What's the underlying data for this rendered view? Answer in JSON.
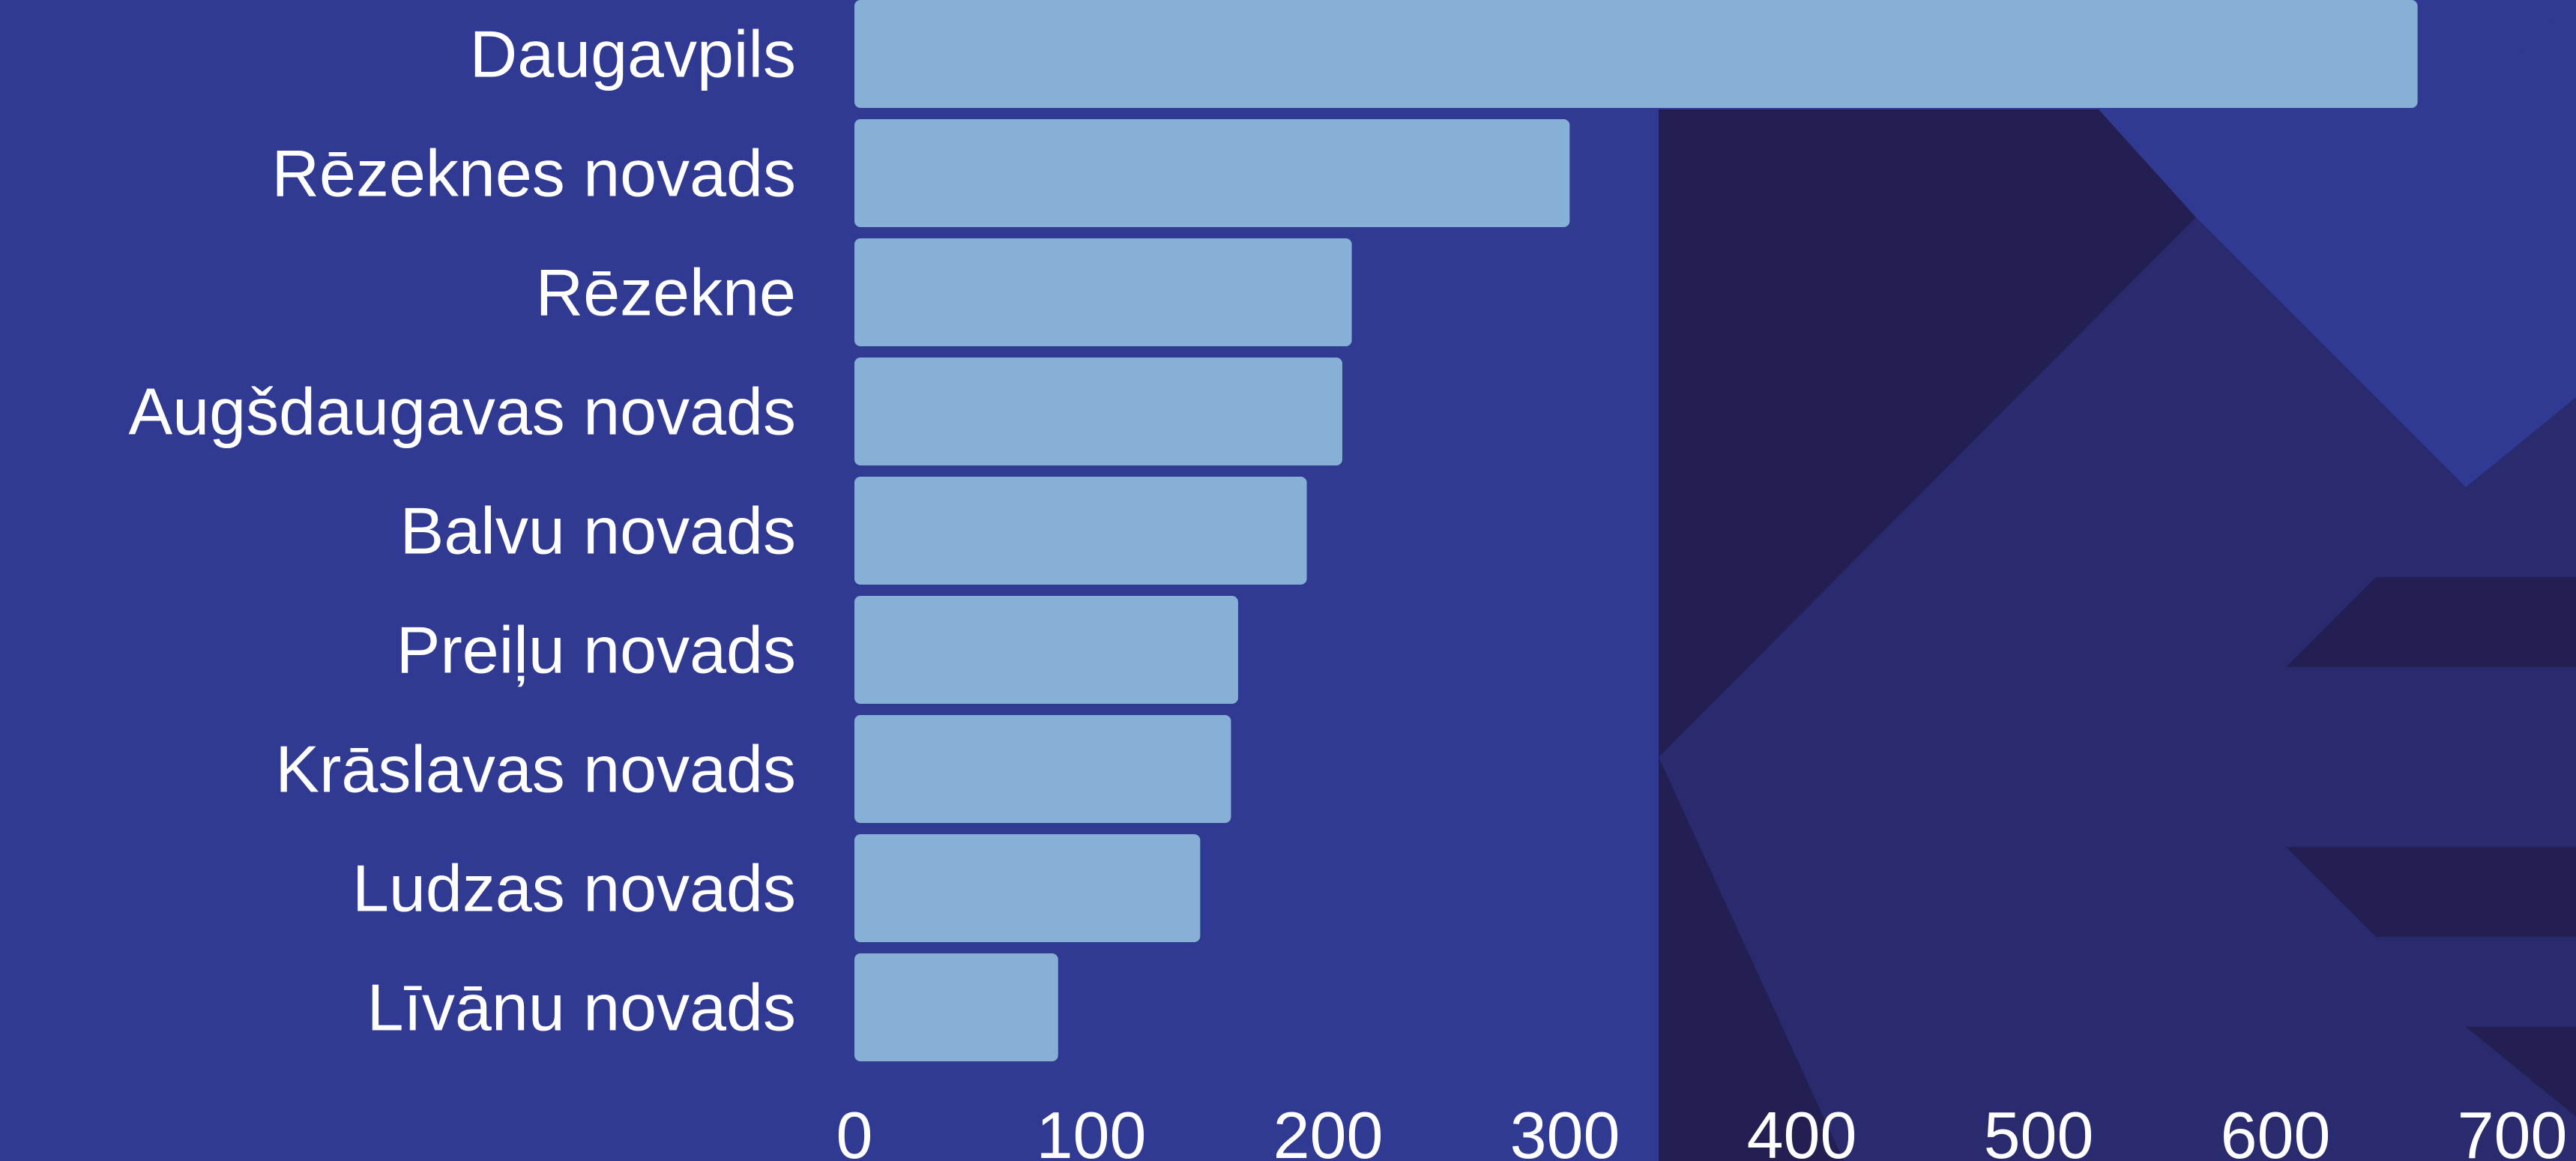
{
  "chart_data": {
    "type": "bar",
    "orientation": "horizontal",
    "categories": [
      "Daugavpils",
      "Rēzeknes novads",
      "Rēzekne",
      "Augšdaugavas novads",
      "Balvu novads",
      "Preiļu novads",
      "Krāslavas novads",
      "Ludzas novads",
      "Līvānu novads"
    ],
    "values": [
      660,
      302,
      210,
      206,
      191,
      162,
      159,
      146,
      86
    ],
    "x_ticks": [
      0,
      100,
      200,
      300,
      400,
      500,
      600,
      700
    ],
    "xlim": [
      0,
      730
    ],
    "title": "",
    "xlabel": "",
    "ylabel": "",
    "grid": false,
    "legend": "none"
  },
  "colors": {
    "background": "#303a92",
    "bar": "#86b0d6",
    "text": "#ffffff",
    "pattern_dark": "#241f52",
    "pattern_mid": "#2a2b6e"
  }
}
